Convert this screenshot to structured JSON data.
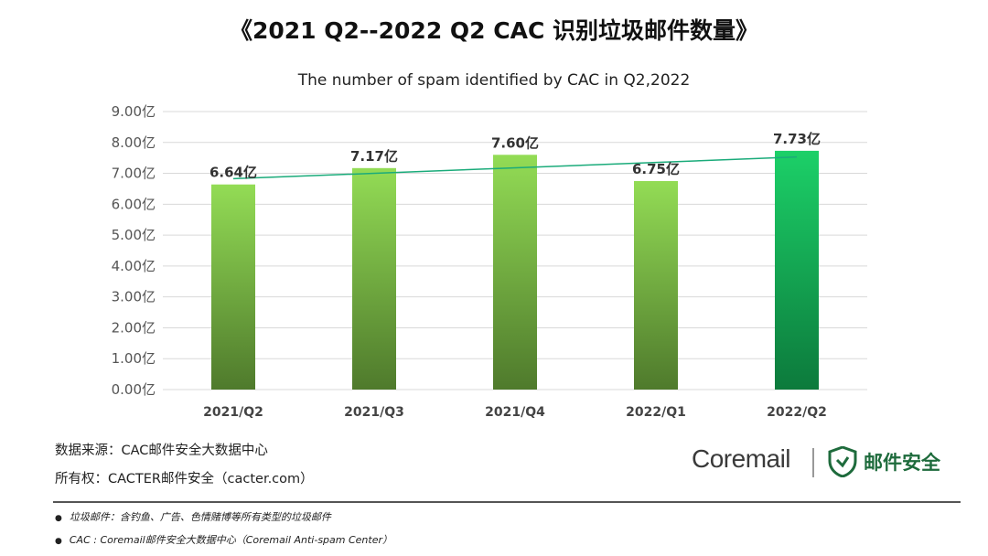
{
  "page": {
    "title": "《2021 Q2--2022 Q2 CAC 识别垃圾邮件数量》"
  },
  "chart_data": {
    "type": "bar",
    "title": "The number of spam identified by CAC in Q2,2022",
    "categories": [
      "2021/Q2",
      "2021/Q3",
      "2021/Q4",
      "2022/Q1",
      "2022/Q2"
    ],
    "values": [
      6.64,
      7.17,
      7.6,
      6.75,
      7.73
    ],
    "data_labels": [
      "6.64亿",
      "7.17亿",
      "7.60亿",
      "6.75亿",
      "7.73亿"
    ],
    "ylim": [
      0,
      9
    ],
    "y_ticks": [
      "0.00亿",
      "1.00亿",
      "2.00亿",
      "3.00亿",
      "4.00亿",
      "5.00亿",
      "6.00亿",
      "7.00亿",
      "8.00亿",
      "9.00亿"
    ],
    "grid": true,
    "trendline": true,
    "colors": {
      "bar_top": "#93dc55",
      "bar_bottom": "#4f7a2c",
      "highlight_top": "#1cd068",
      "highlight_bottom": "#0c7a3c",
      "trend": "#1aab7a",
      "grid": "#d9d9d9"
    },
    "highlight_index": 4
  },
  "source": {
    "data_source": "数据来源：CAC邮件安全大数据中心",
    "copyright": "所有权：CACTER邮件安全（cacter.com）"
  },
  "logo": {
    "coremail": "Coremail",
    "brand": "邮件安全",
    "icon": "shield-icon"
  },
  "notes": [
    "垃圾邮件：含钓鱼、广告、色情赌博等所有类型的垃圾邮件",
    "CAC : Coremail邮件安全大数据中心（Coremail Anti-spam Center）"
  ]
}
